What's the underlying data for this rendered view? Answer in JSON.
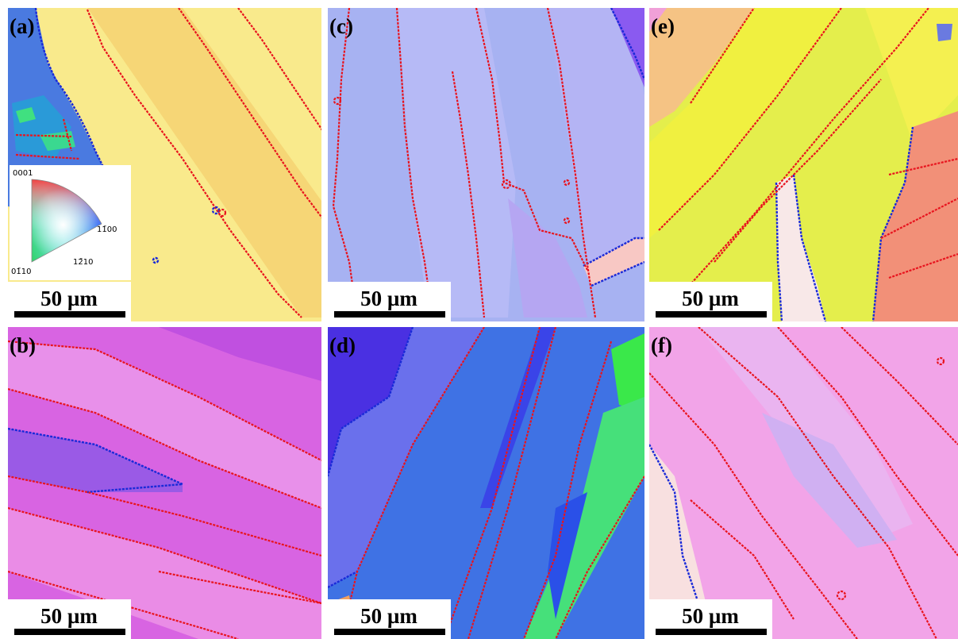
{
  "panels": [
    {
      "label": "(a)",
      "scale_bar": "50 µm"
    },
    {
      "label": "(c)",
      "scale_bar": "50 µm"
    },
    {
      "label": "(e)",
      "scale_bar": "50 µm"
    },
    {
      "label": "(b)",
      "scale_bar": "50 µm"
    },
    {
      "label": "(d)",
      "scale_bar": "50 µm"
    },
    {
      "label": "(f)",
      "scale_bar": "50 µm"
    }
  ],
  "legend": {
    "labels": [
      "0001",
      "11̄00",
      "01̄10",
      "12̄10"
    ]
  }
}
